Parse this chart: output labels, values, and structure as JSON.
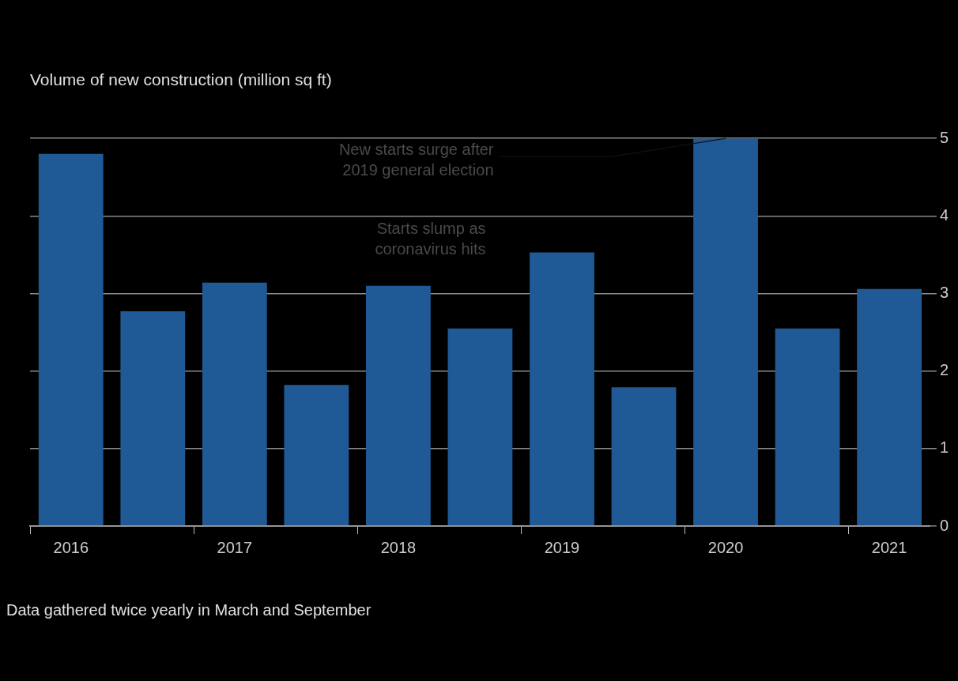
{
  "chart_data": {
    "type": "bar",
    "title": "Volume of new construction (million sq ft)",
    "categories": [
      "2016",
      null,
      "2017",
      null,
      "2018",
      null,
      "2019",
      null,
      "2020",
      null,
      "2021"
    ],
    "values": [
      4.8,
      2.77,
      3.14,
      1.82,
      3.1,
      2.55,
      3.53,
      1.79,
      5.0,
      2.55,
      3.06
    ],
    "color": "#1f5a96",
    "ylim": [
      0,
      5
    ],
    "yticks": [
      0,
      1,
      2,
      3,
      4,
      5
    ],
    "grid": "y",
    "annotations": [
      {
        "text": "New starts surge after\n2019 general election",
        "x": "2020",
        "y": 5.0
      },
      "Starts slump as\ncoronavirus hits",
      "Data gathered twice yearly in March and September"
    ]
  }
}
